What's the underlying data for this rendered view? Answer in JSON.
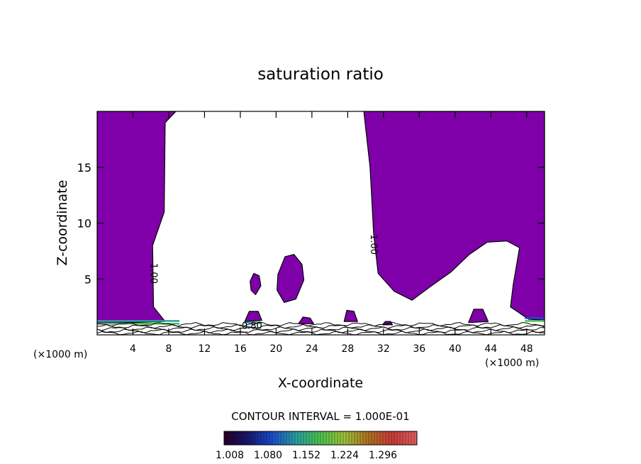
{
  "chart_data": {
    "type": "contour",
    "title": "saturation ratio",
    "xlabel": "X-coordinate",
    "ylabel": "Z-coordinate",
    "x_unit": "(×1000 m)",
    "y_unit": "(×1000 m)",
    "xlim": [
      0,
      50
    ],
    "ylim": [
      0,
      20
    ],
    "x_ticks": [
      4,
      8,
      12,
      16,
      20,
      24,
      28,
      32,
      36,
      40,
      44,
      48
    ],
    "y_ticks": [
      5,
      10,
      15
    ],
    "contour_labels": [
      {
        "text": "1.00",
        "x": 6.0,
        "y": 5.5,
        "rotate": 90
      },
      {
        "text": "1.00",
        "x": 30.6,
        "y": 8.1,
        "rotate": 90
      },
      {
        "text": "0.80",
        "x": 17.3,
        "y": 0.55,
        "rotate": 0
      }
    ],
    "fill_color": "#7f00a8",
    "contour_interval_text": "CONTOUR INTERVAL = 1.000E-01",
    "colorbar": {
      "labels": [
        "1.008",
        "1.080",
        "1.152",
        "1.224",
        "1.296"
      ],
      "stops": [
        "#280028",
        "#18186e",
        "#1a4dcc",
        "#2aa0a0",
        "#4cc24c",
        "#9ec03a",
        "#b07020",
        "#c83a3a",
        "#e06060"
      ]
    },
    "regions": [
      {
        "name": "left-supersaturated-region",
        "points": [
          [
            0,
            20
          ],
          [
            8.8,
            20
          ],
          [
            7.6,
            19
          ],
          [
            7.5,
            11
          ],
          [
            6.2,
            8
          ],
          [
            6.3,
            2.5
          ],
          [
            7.6,
            1.2
          ],
          [
            0,
            1.0
          ]
        ]
      },
      {
        "name": "right-supersaturated-region",
        "points": [
          [
            30.2,
            20
          ],
          [
            50,
            20
          ],
          [
            50,
            1.3
          ],
          [
            48.2,
            1.4
          ],
          [
            46.2,
            2.5
          ],
          [
            46.5,
            4.5
          ],
          [
            47.2,
            7.8
          ],
          [
            45.8,
            8.4
          ],
          [
            43.6,
            8.3
          ],
          [
            41.6,
            7.2
          ],
          [
            39.5,
            5.6
          ],
          [
            37.2,
            4.3
          ],
          [
            35.2,
            3.1
          ],
          [
            33.2,
            3.9
          ],
          [
            31.4,
            5.5
          ],
          [
            30.9,
            9
          ],
          [
            30.5,
            15
          ],
          [
            29.8,
            20
          ]
        ]
      },
      {
        "name": "cloud-blob-small",
        "points": [
          [
            17.1,
            4.8
          ],
          [
            17.5,
            5.5
          ],
          [
            18.1,
            5.3
          ],
          [
            18.3,
            4.4
          ],
          [
            17.7,
            3.6
          ],
          [
            17.2,
            4.0
          ]
        ]
      },
      {
        "name": "cloud-blob-large",
        "points": [
          [
            20.2,
            5.4
          ],
          [
            21.0,
            7.0
          ],
          [
            22.0,
            7.2
          ],
          [
            22.9,
            6.3
          ],
          [
            23.1,
            4.9
          ],
          [
            22.2,
            3.2
          ],
          [
            20.9,
            2.9
          ],
          [
            20.1,
            4.0
          ]
        ]
      },
      {
        "name": "surface-blob-17",
        "points": [
          [
            16.5,
            1.2
          ],
          [
            17.0,
            2.1
          ],
          [
            18.0,
            2.1
          ],
          [
            18.4,
            1.3
          ]
        ]
      },
      {
        "name": "surface-blob-28",
        "points": [
          [
            27.6,
            1.2
          ],
          [
            27.9,
            2.2
          ],
          [
            28.7,
            2.1
          ],
          [
            29.1,
            1.2
          ]
        ]
      },
      {
        "name": "surface-blob-42",
        "points": [
          [
            41.5,
            1.1
          ],
          [
            42.1,
            2.3
          ],
          [
            43.1,
            2.3
          ],
          [
            43.7,
            1.2
          ]
        ]
      },
      {
        "name": "surface-blob-23",
        "points": [
          [
            22.5,
            1.0
          ],
          [
            23.0,
            1.6
          ],
          [
            23.8,
            1.5
          ],
          [
            24.2,
            1.0
          ]
        ]
      },
      {
        "name": "surface-blob-32",
        "points": [
          [
            31.9,
            0.9
          ],
          [
            32.2,
            1.2
          ],
          [
            32.8,
            1.2
          ],
          [
            33.0,
            0.9
          ]
        ]
      }
    ]
  }
}
